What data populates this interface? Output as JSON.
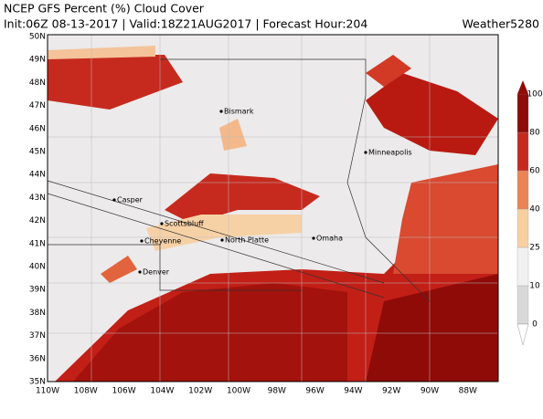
{
  "header": {
    "title": "NCEP GFS Percent (%) Cloud Cover",
    "info": "Init:06Z 08-13-2017 | Valid:18Z21AUG2017 | Forecast Hour:204",
    "brand": "Weather5280"
  },
  "latitude_labels": [
    "50N",
    "49N",
    "48N",
    "47N",
    "46N",
    "45N",
    "44N",
    "43N",
    "42N",
    "41N",
    "40N",
    "39N",
    "38N",
    "37N",
    "36N",
    "35N"
  ],
  "longitude_labels": [
    "110W",
    "108W",
    "106W",
    "104W",
    "102W",
    "100W",
    "98W",
    "96W",
    "94W",
    "92W",
    "90W",
    "88W"
  ],
  "cities": [
    "Bismark",
    "Minneapolis",
    "Casper",
    "Scottsbluff",
    "Cheyenne",
    "North Platte",
    "Omaha",
    "Denver"
  ],
  "colorbar_ticks": [
    0,
    10,
    25,
    40,
    60,
    80,
    100
  ]
}
